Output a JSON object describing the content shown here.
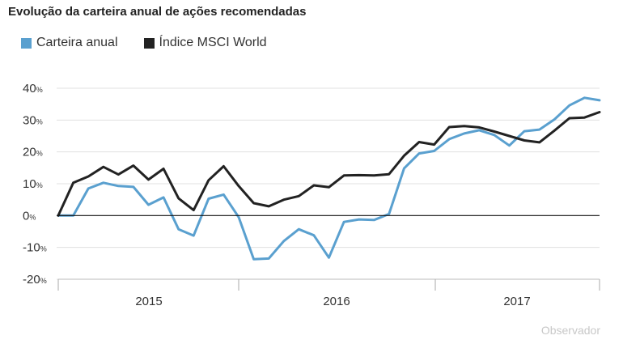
{
  "title": "Evolução da carteira anual de ações recomendadas",
  "source": "Observador",
  "colors": {
    "carteira": "#5aa0cf",
    "msci": "#222222",
    "grid": "#e0e0e0",
    "zero": "#111111"
  },
  "chart_data": {
    "type": "line",
    "title": "Evolução da carteira anual de ações recomendadas",
    "ylim": [
      -20,
      40
    ],
    "yticks": [
      40,
      30,
      20,
      10,
      0,
      -10,
      -20
    ],
    "ytick_unit": "%",
    "year_labels": [
      "2015",
      "2016",
      "2017"
    ],
    "grid": true,
    "legend_position": "top-left",
    "n_points": 37,
    "series": [
      {
        "name": "Carteira anual",
        "color": "#5aa0cf",
        "values": [
          0,
          0,
          8.5,
          10.3,
          9.3,
          9,
          3.4,
          5.7,
          -4.3,
          -6.3,
          5.3,
          6.6,
          -0.5,
          -13.7,
          -13.5,
          -8,
          -4.3,
          -6.2,
          -13.2,
          -2,
          -1.2,
          -1.4,
          0.5,
          14.8,
          19.5,
          20.3,
          24,
          25.8,
          26.8,
          25.3,
          22,
          26.5,
          27,
          30.2,
          34.6,
          37,
          36.2
        ]
      },
      {
        "name": "Índice MSCI World",
        "color": "#222222",
        "values": [
          0,
          10.3,
          12.3,
          15.3,
          12.9,
          15.7,
          11.3,
          14.7,
          5.4,
          1.7,
          11.1,
          15.5,
          9.3,
          3.9,
          2.9,
          5,
          6.1,
          9.5,
          8.9,
          12.6,
          12.7,
          12.6,
          13,
          18.8,
          23.1,
          22.3,
          27.8,
          28.1,
          27.7,
          26.4,
          25,
          23.6,
          23,
          26.7,
          30.6,
          30.8,
          32.5
        ]
      }
    ]
  }
}
